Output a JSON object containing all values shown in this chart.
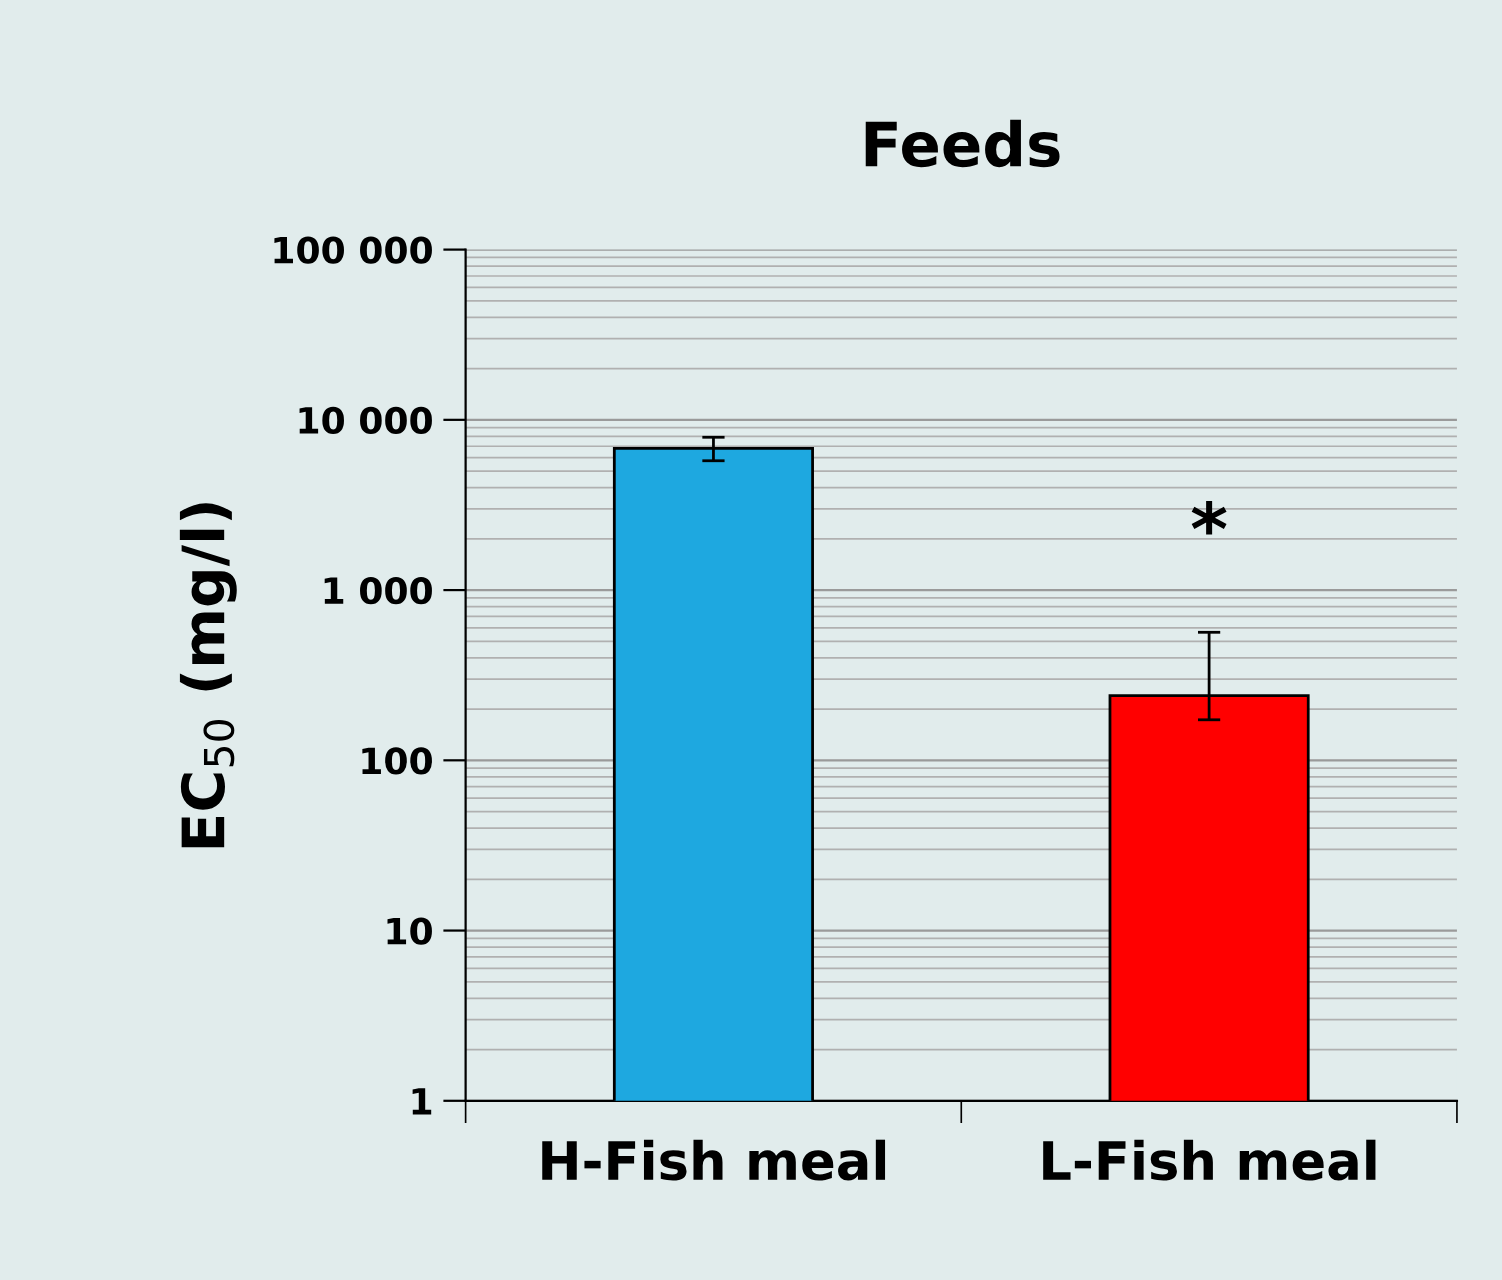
{
  "chart_data": {
    "type": "bar",
    "title": "Feeds",
    "ylabel": "EC$_{50}$ (mg/l)",
    "categories": [
      "H-Fish meal",
      "L-Fish meal"
    ],
    "values": [
      6800,
      240
    ],
    "colors": [
      "#1ea8e0",
      "#ff0000"
    ],
    "errors": [
      [
        5750,
        7900
      ],
      [
        173,
        565
      ]
    ],
    "log": true,
    "ylim": [
      1,
      100000
    ],
    "yticks": [
      1,
      10,
      100,
      {
        "value": 1000,
        "label": "1 000"
      },
      {
        "value": 10000,
        "label": "10 000"
      },
      {
        "value": 100000,
        "label": "100 000"
      }
    ],
    "grid": "y",
    "annotations": [
      "*"
    ]
  }
}
